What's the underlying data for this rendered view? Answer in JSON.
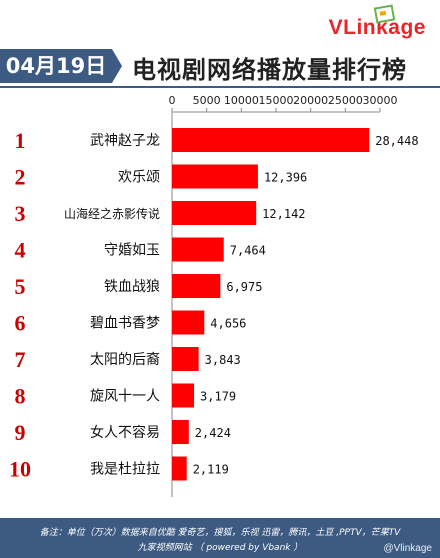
{
  "logo_text": "VLinkage",
  "date": "04月19日",
  "title": "电视剧网络播放量排行榜",
  "footer": {
    "line1": "备注：单位（万次）数据来自优酷 爱奇艺，搜狐，乐视  迅雷，腾讯，土豆 ,PPTV，芒果TV",
    "line2": "九家视频网站  （ powered by Vbank ）"
  },
  "watermark": "@Vlinkage",
  "colors": {
    "bar": "#ff0000",
    "rank": "#cc0000",
    "header": "#3d5a82"
  },
  "chart_data": {
    "type": "bar",
    "orientation": "horizontal",
    "title": "电视剧网络播放量排行榜",
    "ranks": [
      "1",
      "2",
      "3",
      "4",
      "5",
      "6",
      "7",
      "8",
      "9",
      "10"
    ],
    "categories": [
      "武神赵子龙",
      "欢乐颂",
      "山海经之赤影传说",
      "守婚如玉",
      "铁血战狼",
      "碧血书香梦",
      "太阳的后裔",
      "旋风十一人",
      "女人不容易",
      "我是杜拉拉"
    ],
    "values": [
      28448,
      12396,
      12142,
      7464,
      6975,
      4656,
      3843,
      3179,
      2424,
      2119
    ],
    "value_labels": [
      "28,448",
      "12,396",
      "12,142",
      "7,464",
      "6,975",
      "4,656",
      "3,843",
      "3,179",
      "2,424",
      "2,119"
    ],
    "xlim": [
      0,
      30000
    ],
    "xticks": [
      0,
      5000,
      10000,
      15000,
      20000,
      25000,
      30000
    ],
    "xtick_labels": [
      "0",
      "5000",
      "10000",
      "15000",
      "20000",
      "25000",
      "30000"
    ],
    "axis_position": "top",
    "grid": false
  }
}
